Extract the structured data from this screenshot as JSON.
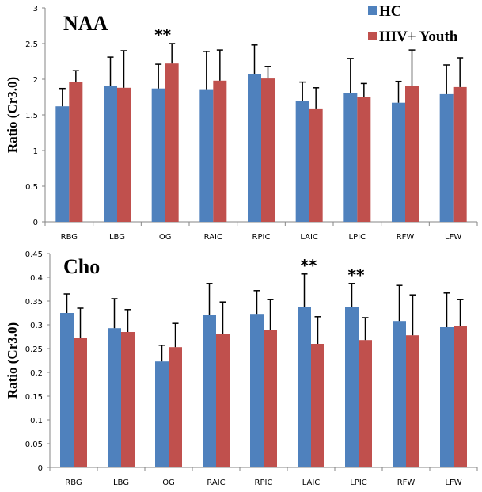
{
  "legend": [
    {
      "name": "HC",
      "color": "#4F81BD"
    },
    {
      "name": "HIV+ Youth",
      "color": "#C0504D"
    }
  ],
  "chart_data": [
    {
      "type": "bar",
      "title": "NAA",
      "xlabel": "",
      "ylabel": "Ratio (Cr3.0)",
      "ylim": [
        0,
        3
      ],
      "yticks": [
        0,
        0.5,
        1,
        1.5,
        2,
        2.5,
        3
      ],
      "ytick_labels": [
        "0",
        "0.5",
        "1",
        "1.5",
        "2",
        "2.5",
        "3"
      ],
      "grid": false,
      "legend_position": "top-right",
      "categories": [
        "RBG",
        "LBG",
        "OG",
        "RAIC",
        "RPIC",
        "LAIC",
        "LPIC",
        "RFW",
        "LFW"
      ],
      "series": [
        {
          "name": "HC",
          "color": "#4F81BD",
          "values": [
            1.62,
            1.91,
            1.87,
            1.86,
            2.07,
            1.7,
            1.81,
            1.67,
            1.79
          ],
          "error_upper": [
            1.87,
            2.31,
            2.21,
            2.39,
            2.48,
            1.96,
            2.29,
            1.97,
            2.2
          ]
        },
        {
          "name": "HIV+ Youth",
          "color": "#C0504D",
          "values": [
            1.96,
            1.88,
            2.22,
            1.98,
            2.01,
            1.59,
            1.75,
            1.9,
            1.89
          ],
          "error_upper": [
            2.12,
            2.4,
            2.5,
            2.41,
            2.18,
            1.88,
            1.94,
            2.41,
            2.3
          ]
        }
      ],
      "annotations": [
        {
          "category": "OG",
          "text": "**"
        }
      ]
    },
    {
      "type": "bar",
      "title": "Cho",
      "xlabel": "",
      "ylabel": "Ratio (Cr3.0)",
      "ylim": [
        0,
        0.45
      ],
      "yticks": [
        0,
        0.05,
        0.1,
        0.15,
        0.2,
        0.25,
        0.3,
        0.35,
        0.4,
        0.45
      ],
      "ytick_labels": [
        "0",
        "0.05",
        "0.1",
        "0.15",
        "0.2",
        "0.25",
        "0.3",
        "0.35",
        "0.4",
        "0.45"
      ],
      "grid": false,
      "legend_position": "none",
      "categories": [
        "RBG",
        "LBG",
        "OG",
        "RAIC",
        "RPIC",
        "LAIC",
        "LPIC",
        "RFW",
        "LFW"
      ],
      "series": [
        {
          "name": "HC",
          "color": "#4F81BD",
          "values": [
            0.325,
            0.293,
            0.223,
            0.32,
            0.323,
            0.338,
            0.338,
            0.308,
            0.295
          ],
          "error_upper": [
            0.365,
            0.355,
            0.257,
            0.387,
            0.372,
            0.407,
            0.387,
            0.383,
            0.367
          ]
        },
        {
          "name": "HIV+ Youth",
          "color": "#C0504D",
          "values": [
            0.272,
            0.285,
            0.253,
            0.28,
            0.29,
            0.26,
            0.268,
            0.278,
            0.297
          ],
          "error_upper": [
            0.335,
            0.332,
            0.303,
            0.348,
            0.353,
            0.317,
            0.315,
            0.363,
            0.353
          ]
        }
      ],
      "annotations": [
        {
          "category": "LAIC",
          "text": "**"
        },
        {
          "category": "LPIC",
          "text": "**"
        }
      ]
    }
  ]
}
